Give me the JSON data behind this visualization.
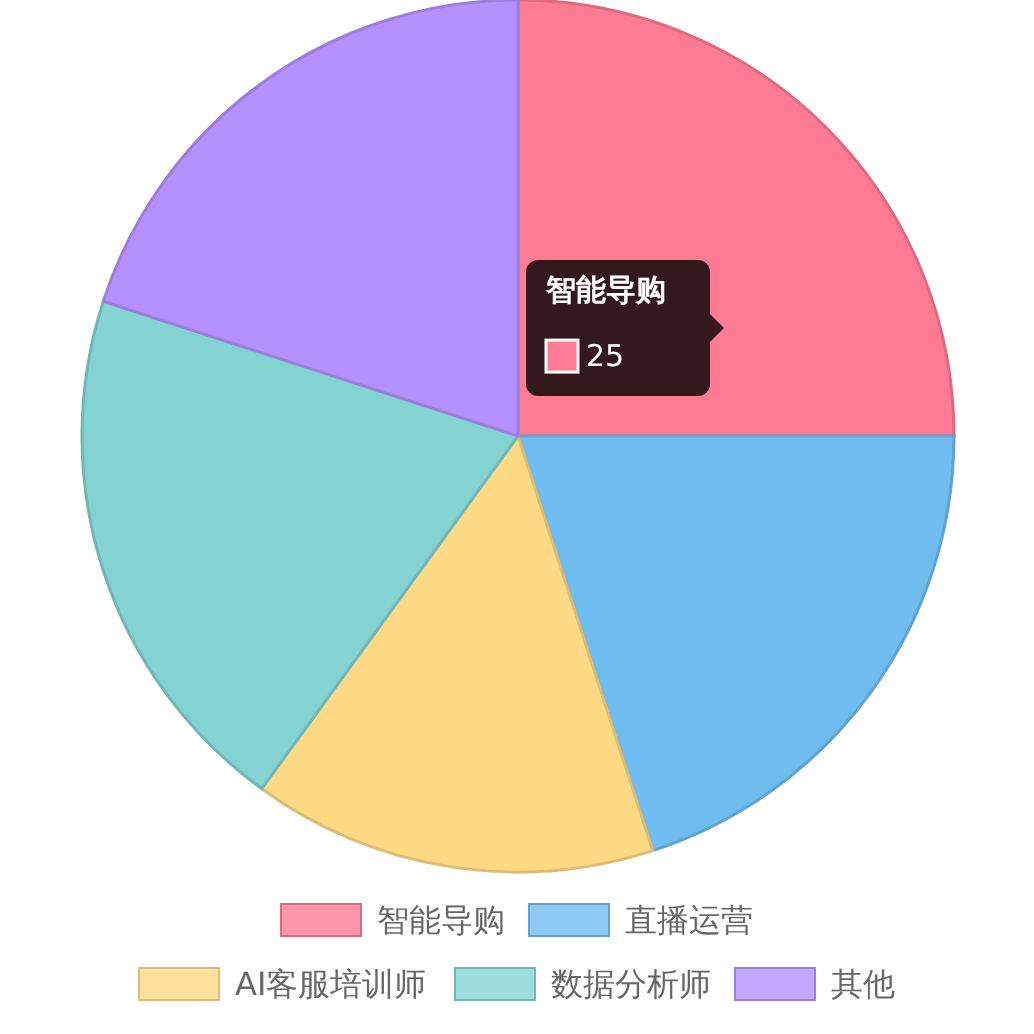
{
  "chart_data": {
    "type": "pie",
    "categories": [
      "智能导购",
      "直播运营",
      "AI客服培训师",
      "数据分析师",
      "其他"
    ],
    "values": [
      25,
      20,
      15,
      20,
      20
    ],
    "colors": [
      "#ff7b94",
      "#6fbcf0",
      "#ffda85",
      "#83d3d3",
      "#b591ff"
    ],
    "value_labels": [
      "25",
      null,
      null,
      null,
      null
    ],
    "legend": "bottom"
  }
}
